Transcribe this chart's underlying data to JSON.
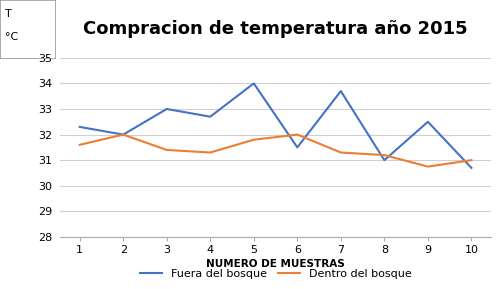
{
  "title": "Compracion de temperatura año 2015",
  "xlabel": "NUMERO DE MUESTRAS",
  "ylabel_line1": "T",
  "ylabel_line2": "°C",
  "x": [
    1,
    2,
    3,
    4,
    5,
    6,
    7,
    8,
    9,
    10
  ],
  "fuera_del_bosque": [
    32.3,
    32.0,
    33.0,
    32.7,
    34.0,
    31.5,
    33.7,
    31.0,
    32.5,
    30.7
  ],
  "dentro_del_bosque": [
    31.6,
    32.0,
    31.4,
    31.3,
    31.8,
    32.0,
    31.3,
    31.2,
    30.75,
    31.0
  ],
  "fuera_color": "#4472C4",
  "dentro_color": "#ED7D31",
  "ylim": [
    28,
    35
  ],
  "yticks": [
    28,
    29,
    30,
    31,
    32,
    33,
    34,
    35
  ],
  "xticks": [
    1,
    2,
    3,
    4,
    5,
    6,
    7,
    8,
    9,
    10
  ],
  "legend_fuera": "Fuera del bosque",
  "legend_dentro": "Dentro del bosque",
  "bg_color": "#ffffff",
  "grid_color": "#d0d0d0",
  "title_fontsize": 13,
  "label_fontsize": 7.5,
  "tick_fontsize": 8,
  "legend_fontsize": 8
}
